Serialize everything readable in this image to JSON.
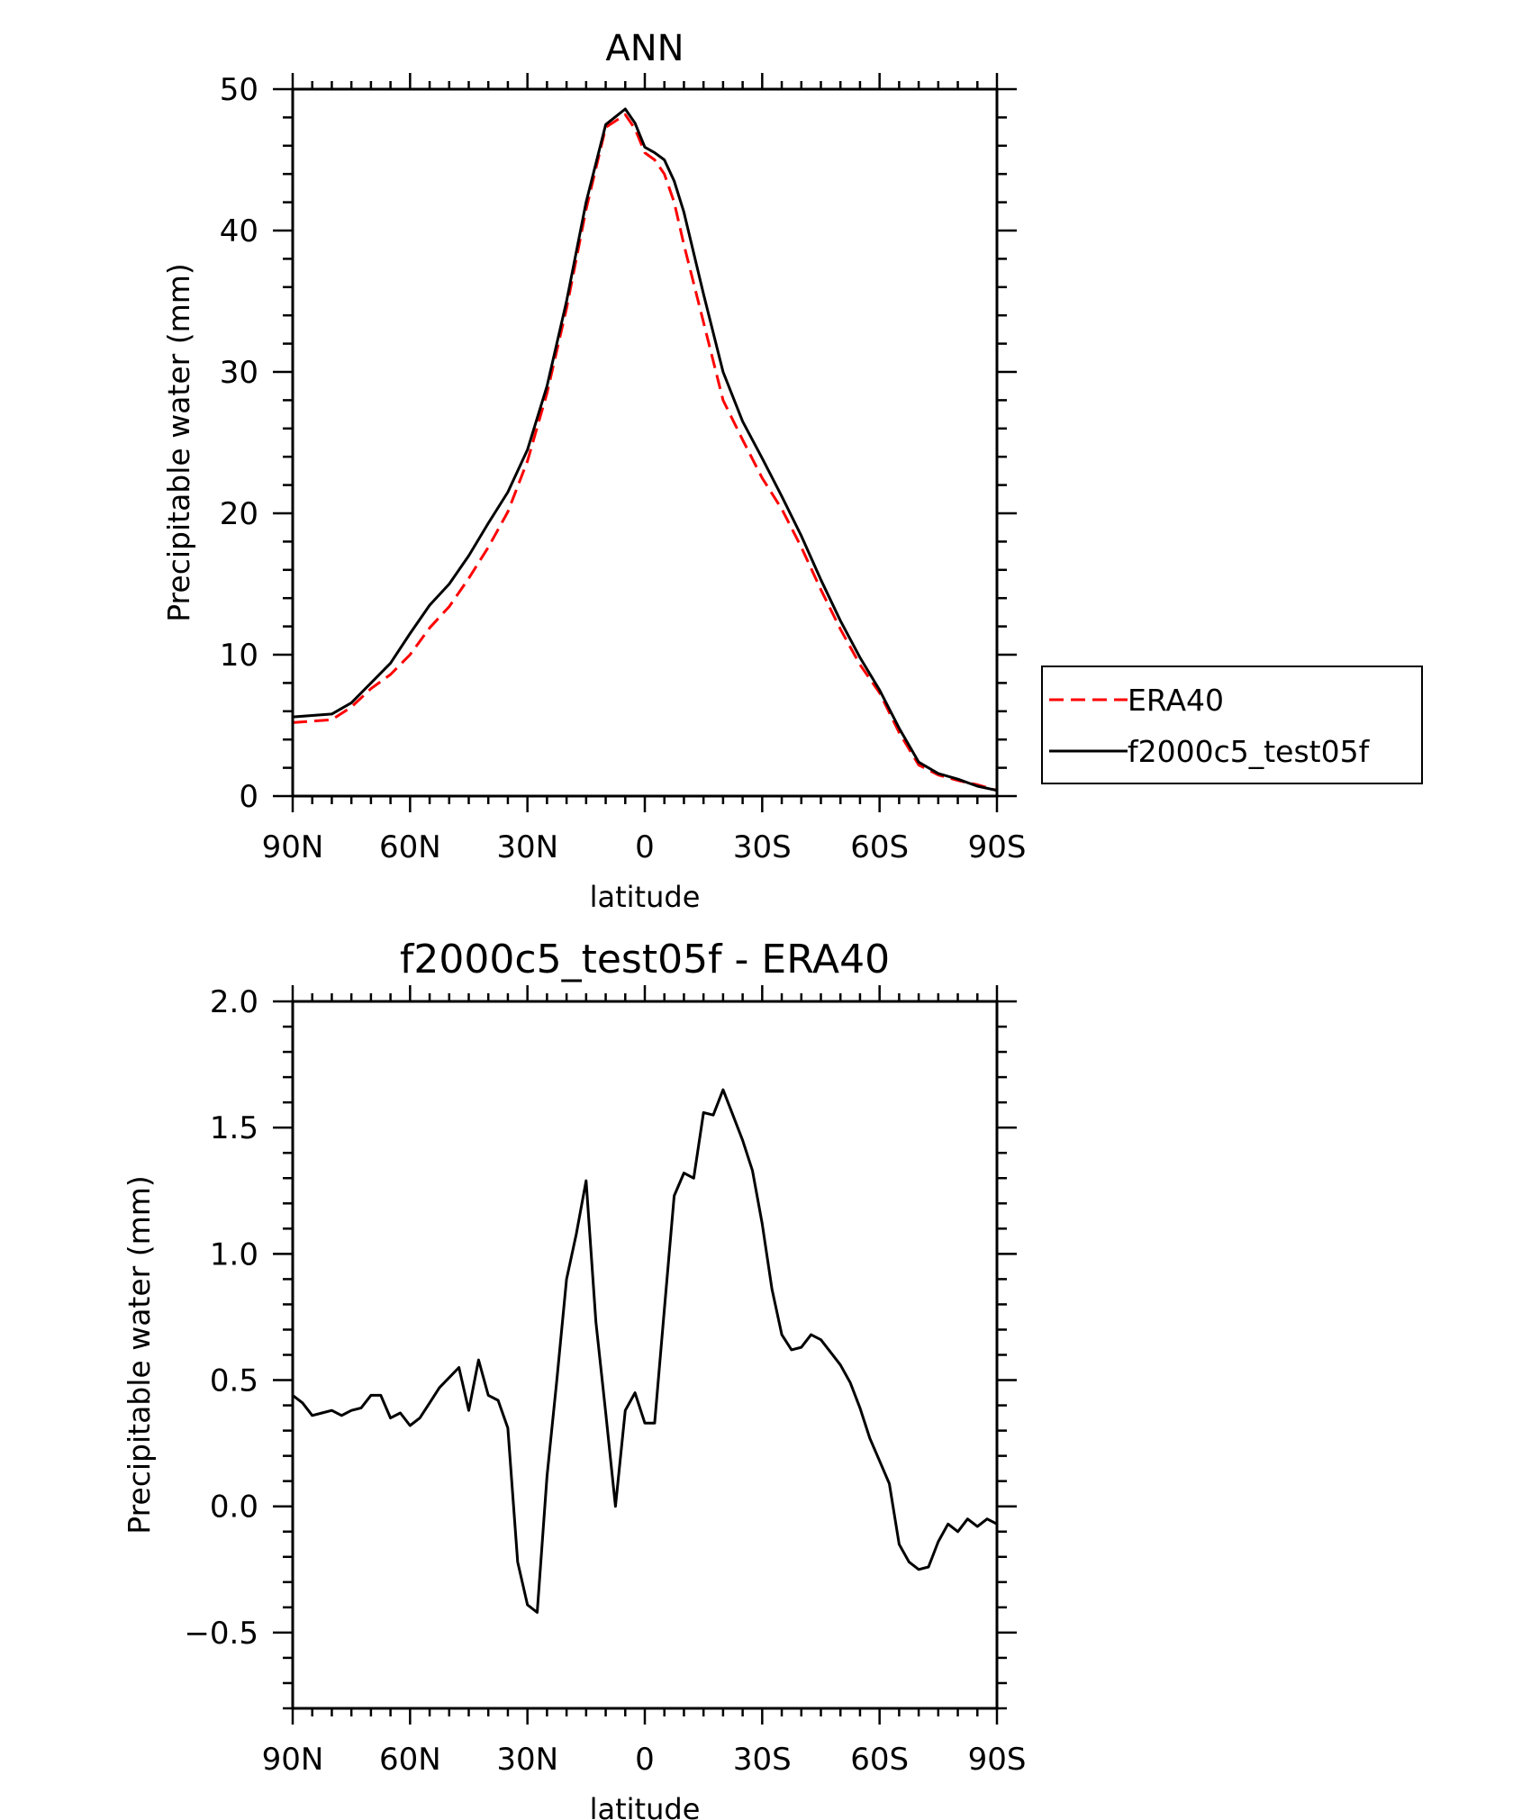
{
  "figure": {
    "background": "#ffffff",
    "axis_color": "#000000"
  },
  "chart_data": [
    {
      "type": "line",
      "title": "ANN",
      "xlabel": "latitude",
      "ylabel": "Precipitable water (mm)",
      "xlim": [
        90,
        -90
      ],
      "ylim": [
        0,
        50
      ],
      "x_ticks": [
        90,
        60,
        30,
        0,
        -30,
        -60,
        -90
      ],
      "x_tick_labels": [
        "90N",
        "60N",
        "30N",
        "0",
        "30S",
        "60S",
        "90S"
      ],
      "y_ticks": [
        0,
        10,
        20,
        30,
        40,
        50
      ],
      "y_tick_labels": [
        "0",
        "10",
        "20",
        "30",
        "40",
        "50"
      ],
      "grid": false,
      "legend": {
        "position": "right",
        "entries": [
          "ERA40",
          "f2000c5_test05f"
        ]
      },
      "series": [
        {
          "name": "ERA40",
          "color": "#ff0000",
          "dash": "dashed",
          "x": [
            90,
            85,
            80,
            75,
            70,
            65,
            60,
            55,
            50,
            45,
            40,
            35,
            30,
            25,
            20,
            15,
            10,
            5,
            2.5,
            0,
            -2.5,
            -5,
            -7.5,
            -10,
            -15,
            -20,
            -25,
            -30,
            -35,
            -40,
            -45,
            -50,
            -55,
            -60,
            -65,
            -70,
            -75,
            -80,
            -85,
            -90
          ],
          "y": [
            5.2,
            5.3,
            5.4,
            6.3,
            7.6,
            8.6,
            10.0,
            11.9,
            13.4,
            15.4,
            17.6,
            20.1,
            23.7,
            28.5,
            34.5,
            41.5,
            47.3,
            48.2,
            47.2,
            45.5,
            45.0,
            44.0,
            42.0,
            39.0,
            33.5,
            28.0,
            25.2,
            22.5,
            20.3,
            17.6,
            14.6,
            11.8,
            9.3,
            7.3,
            4.5,
            2.2,
            1.5,
            1.1,
            0.8,
            0.4
          ]
        },
        {
          "name": "f2000c5_test05f",
          "color": "#000000",
          "dash": "solid",
          "x": [
            90,
            85,
            80,
            75,
            70,
            65,
            60,
            55,
            50,
            45,
            40,
            35,
            30,
            25,
            20,
            15,
            10,
            5,
            2.5,
            0,
            -2.5,
            -5,
            -7.5,
            -10,
            -15,
            -20,
            -25,
            -30,
            -35,
            -40,
            -45,
            -50,
            -55,
            -60,
            -65,
            -70,
            -75,
            -80,
            -85,
            -90
          ],
          "y": [
            5.6,
            5.7,
            5.8,
            6.6,
            8.0,
            9.4,
            11.5,
            13.5,
            15.0,
            17.0,
            19.3,
            21.5,
            24.5,
            29.0,
            35.0,
            42.0,
            47.5,
            48.6,
            47.6,
            45.9,
            45.5,
            45.0,
            43.5,
            41.3,
            35.5,
            30.0,
            26.5,
            23.9,
            21.2,
            18.4,
            15.3,
            12.4,
            9.8,
            7.5,
            4.8,
            2.4,
            1.6,
            1.2,
            0.7,
            0.4
          ]
        }
      ]
    },
    {
      "type": "line",
      "title": "f2000c5_test05f - ERA40",
      "xlabel": "latitude",
      "ylabel": "Precipitable water (mm)",
      "xlim": [
        90,
        -90
      ],
      "ylim": [
        -0.8,
        2.0
      ],
      "x_ticks": [
        90,
        60,
        30,
        0,
        -30,
        -60,
        -90
      ],
      "x_tick_labels": [
        "90N",
        "60N",
        "30N",
        "0",
        "30S",
        "60S",
        "90S"
      ],
      "y_ticks": [
        -0.5,
        0.0,
        0.5,
        1.0,
        1.5,
        2.0
      ],
      "y_tick_labels": [
        "−0.5",
        "0.0",
        "0.5",
        "1.0",
        "1.5",
        "2.0"
      ],
      "grid": false,
      "series": [
        {
          "color": "#000000",
          "dash": "solid",
          "x": [
            90,
            87.5,
            85,
            82.5,
            80,
            77.5,
            75,
            72.5,
            70,
            67.5,
            65,
            62.5,
            60,
            57.5,
            55,
            52.5,
            50,
            47.5,
            45,
            42.5,
            40,
            37.5,
            35,
            32.5,
            30,
            27.5,
            25,
            22.5,
            20,
            17.5,
            15,
            12.5,
            10,
            7.5,
            5,
            2.5,
            0,
            -2.5,
            -5,
            -7.5,
            -10,
            -12.5,
            -15,
            -17.5,
            -20,
            -22.5,
            -25,
            -27.5,
            -30,
            -32.5,
            -35,
            -37.5,
            -40,
            -42.5,
            -45,
            -47.5,
            -50,
            -52.5,
            -55,
            -57.5,
            -60,
            -62.5,
            -65,
            -67.5,
            -70,
            -72.5,
            -75,
            -77.5,
            -80,
            -82.5,
            -85,
            -87.5,
            -90
          ],
          "y": [
            0.44,
            0.41,
            0.36,
            0.37,
            0.38,
            0.36,
            0.38,
            0.39,
            0.44,
            0.44,
            0.35,
            0.37,
            0.32,
            0.35,
            0.41,
            0.47,
            0.51,
            0.55,
            0.38,
            0.58,
            0.44,
            0.42,
            0.31,
            -0.22,
            -0.39,
            -0.42,
            0.12,
            0.5,
            0.9,
            1.08,
            1.29,
            0.73,
            0.37,
            0.0,
            0.38,
            0.45,
            0.33,
            0.33,
            0.78,
            1.23,
            1.32,
            1.3,
            1.56,
            1.55,
            1.65,
            1.55,
            1.45,
            1.33,
            1.12,
            0.86,
            0.68,
            0.62,
            0.63,
            0.68,
            0.66,
            0.61,
            0.56,
            0.49,
            0.39,
            0.27,
            0.18,
            0.09,
            -0.15,
            -0.22,
            -0.25,
            -0.24,
            -0.14,
            -0.07,
            -0.1,
            -0.05,
            -0.08,
            -0.05,
            -0.07
          ]
        }
      ]
    }
  ]
}
